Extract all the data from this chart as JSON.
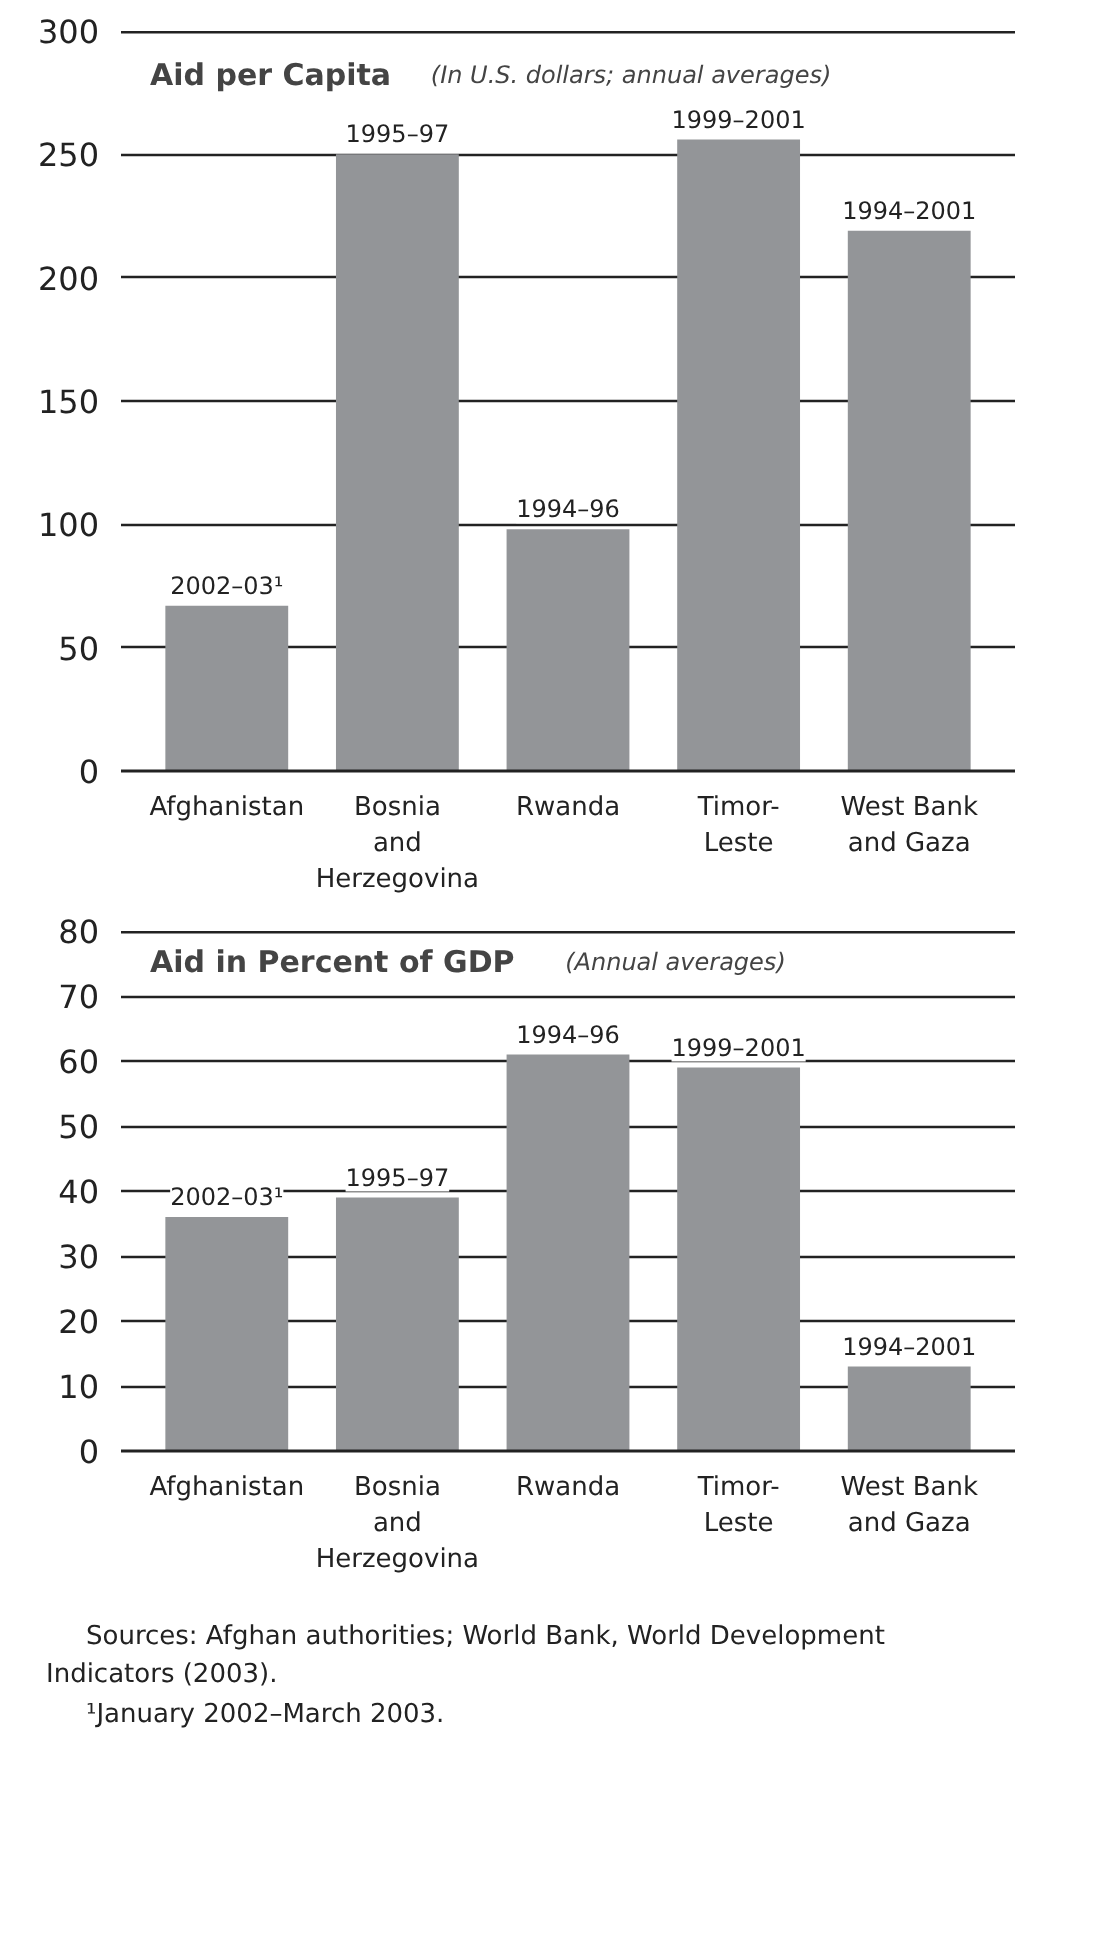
{
  "chart_data": [
    {
      "type": "bar",
      "title": "Aid per Capita",
      "subtitle": "(In U.S. dollars; annual averages)",
      "categories": [
        "Afghanistan",
        "Bosnia\nand\nHerzegovina",
        "Rwanda",
        "Timor-\nLeste",
        "West Bank\nand Gaza"
      ],
      "values": [
        67,
        250,
        98,
        256,
        219
      ],
      "color": "#939598",
      "value_labels": [
        "2002–03¹",
        "1995–97",
        "1994–96",
        "1999–2001",
        "1994–2001"
      ],
      "ylim": [
        0,
        300
      ],
      "yticks": [
        0,
        50,
        100,
        150,
        200,
        250,
        300
      ],
      "grid": "y"
    },
    {
      "type": "bar",
      "title": "Aid in Percent of GDP",
      "subtitle": "(Annual averages)",
      "categories": [
        "Afghanistan",
        "Bosnia\nand\nHerzegovina",
        "Rwanda",
        "Timor-\nLeste",
        "West Bank\nand Gaza"
      ],
      "values": [
        36,
        39,
        61,
        59,
        13
      ],
      "color": "#939598",
      "value_labels": [
        "2002–03¹",
        "1995–97",
        "1994–96",
        "1999–2001",
        "1994–2001"
      ],
      "ylim": [
        0,
        80
      ],
      "yticks": [
        0,
        10,
        20,
        30,
        40,
        50,
        60,
        70,
        80
      ],
      "grid": "y",
      "annotations": [
        "Sources: Afghan authorities; World Bank, World Development Indicators (2003).",
        "¹January 2002–March 2003."
      ]
    }
  ]
}
